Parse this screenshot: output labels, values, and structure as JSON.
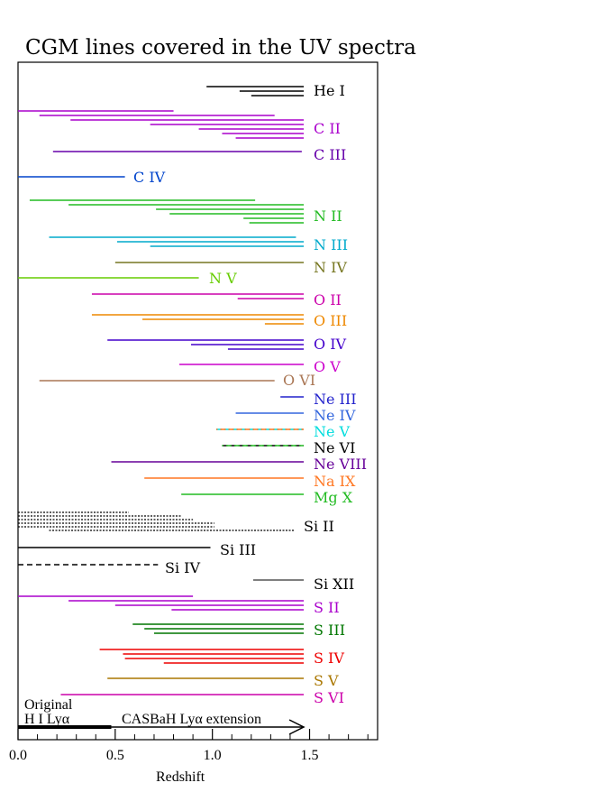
{
  "chart_data": {
    "type": "range",
    "title": "CGM lines covered in the UV spectra",
    "xlabel": "Redshift",
    "xlim": [
      0,
      1.85
    ],
    "xticks": [
      "0.0",
      "0.5",
      "1.0",
      "1.5"
    ],
    "xtick_values": [
      0,
      0.5,
      1.0,
      1.5
    ],
    "grid": false,
    "ions": [
      {
        "name": "He I",
        "color": "#000000",
        "segments": [
          [
            0.97,
            1.47
          ],
          [
            1.14,
            1.47
          ],
          [
            1.2,
            1.47
          ]
        ]
      },
      {
        "name": "C II",
        "color": "#aa00cc",
        "segments": [
          [
            0.0,
            0.8
          ],
          [
            0.11,
            1.32
          ],
          [
            0.27,
            1.47
          ],
          [
            0.68,
            1.47
          ],
          [
            0.93,
            1.47
          ],
          [
            1.05,
            1.47
          ],
          [
            1.12,
            1.47
          ]
        ]
      },
      {
        "name": "C III",
        "color": "#6600aa",
        "segments": [
          [
            0.18,
            1.46
          ]
        ]
      },
      {
        "name": "C IV",
        "color": "#0044cc",
        "segments": [
          [
            0.0,
            0.55
          ]
        ]
      },
      {
        "name": "N II",
        "color": "#22bb22",
        "segments": [
          [
            0.06,
            1.22
          ],
          [
            0.26,
            1.47
          ],
          [
            0.71,
            1.47
          ],
          [
            0.78,
            1.47
          ],
          [
            1.16,
            1.47
          ],
          [
            1.19,
            1.47
          ]
        ]
      },
      {
        "name": "N III",
        "color": "#00aacc",
        "segments": [
          [
            0.16,
            1.43
          ],
          [
            0.51,
            1.47
          ],
          [
            0.68,
            1.47
          ]
        ]
      },
      {
        "name": "N IV",
        "color": "#777722",
        "segments": [
          [
            0.5,
            1.47
          ]
        ]
      },
      {
        "name": "N V",
        "color": "#66cc00",
        "segments": [
          [
            0.0,
            0.93
          ]
        ]
      },
      {
        "name": "O II",
        "color": "#cc00aa",
        "segments": [
          [
            0.38,
            1.47
          ],
          [
            1.13,
            1.47
          ]
        ]
      },
      {
        "name": "O III",
        "color": "#ee8800",
        "segments": [
          [
            0.38,
            1.47
          ],
          [
            0.64,
            1.47
          ],
          [
            1.27,
            1.47
          ]
        ]
      },
      {
        "name": "O IV",
        "color": "#4400cc",
        "segments": [
          [
            0.46,
            1.47
          ],
          [
            0.89,
            1.47
          ],
          [
            1.08,
            1.47
          ]
        ]
      },
      {
        "name": "O V",
        "color": "#cc00cc",
        "segments": [
          [
            0.83,
            1.47
          ]
        ]
      },
      {
        "name": "O VI",
        "color": "#aa7755",
        "segments": [
          [
            0.11,
            1.32
          ]
        ]
      },
      {
        "name": "Ne III",
        "color": "#2222cc",
        "segments": [
          [
            1.35,
            1.47
          ]
        ]
      },
      {
        "name": "Ne IV",
        "color": "#3366dd",
        "segments": [
          [
            1.12,
            1.47
          ]
        ]
      },
      {
        "name": "Ne V",
        "color": "#00dddd",
        "segments": [
          [
            1.02,
            1.47
          ]
        ]
      },
      {
        "name": "Ne VI",
        "color": "#000000",
        "segments": [
          [
            1.05,
            1.47
          ]
        ]
      },
      {
        "name": "Ne VIII",
        "color": "#660099",
        "segments": [
          [
            0.48,
            1.47
          ]
        ]
      },
      {
        "name": "Na IX",
        "color": "#ff7722",
        "segments": [
          [
            0.65,
            1.47
          ]
        ]
      },
      {
        "name": "Mg X",
        "color": "#22bb22",
        "segments": [
          [
            0.84,
            1.47
          ]
        ]
      },
      {
        "name": "Si II",
        "color": "#000000",
        "segments": [
          [
            0.0,
            0.57
          ],
          [
            0.0,
            0.84
          ],
          [
            0.0,
            0.9
          ],
          [
            0.0,
            1.01
          ],
          [
            0.0,
            1.01
          ],
          [
            0.16,
            1.42
          ]
        ]
      },
      {
        "name": "Si III",
        "color": "#000000",
        "segments": [
          [
            0.0,
            0.99
          ]
        ]
      },
      {
        "name": "Si IV",
        "color": "#000000",
        "segments": [
          [
            0.0,
            0.72
          ]
        ]
      },
      {
        "name": "Si XII",
        "color": "#555555",
        "segments": [
          [
            1.21,
            1.47
          ]
        ]
      },
      {
        "name": "S II",
        "color": "#aa00cc",
        "segments": [
          [
            0.0,
            0.9
          ],
          [
            0.26,
            1.47
          ],
          [
            0.5,
            1.47
          ],
          [
            0.79,
            1.47
          ]
        ]
      },
      {
        "name": "S III",
        "color": "#007700",
        "segments": [
          [
            0.59,
            1.47
          ],
          [
            0.65,
            1.47
          ],
          [
            0.7,
            1.47
          ]
        ]
      },
      {
        "name": "S IV",
        "color": "#ee0000",
        "segments": [
          [
            0.42,
            1.47
          ],
          [
            0.54,
            1.47
          ],
          [
            0.55,
            1.47
          ],
          [
            0.75,
            1.47
          ]
        ]
      },
      {
        "name": "S V",
        "color": "#aa7700",
        "segments": [
          [
            0.46,
            1.47
          ]
        ]
      },
      {
        "name": "S VI",
        "color": "#cc00aa",
        "segments": [
          [
            0.22,
            1.47
          ]
        ]
      }
    ],
    "annotations": {
      "original_line1": "Original",
      "original_line2": "H I Lyα",
      "original_range": [
        0.0,
        0.48
      ],
      "extension": "CASBaH Lyα extension",
      "extension_range": [
        0.48,
        1.47
      ]
    }
  }
}
